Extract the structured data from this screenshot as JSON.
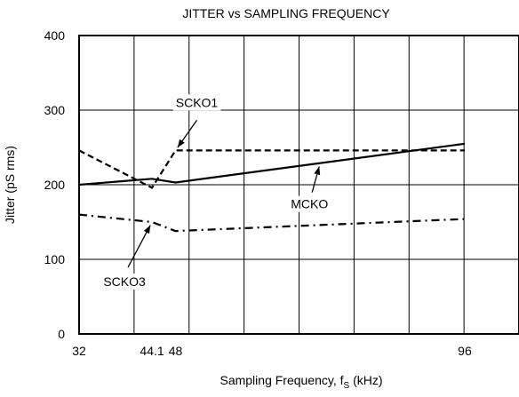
{
  "chart_data": {
    "type": "line",
    "title": "JITTER vs SAMPLING FREQUENCY",
    "xlabel_main": "Sampling Frequency, f",
    "xlabel_sub": "S",
    "xlabel_unit": " (kHz)",
    "ylabel": "Jitter (pS rms)",
    "xlim": [
      32,
      105
    ],
    "ylim": [
      0,
      400
    ],
    "x_ticks": [
      {
        "value": 32,
        "label": "32"
      },
      {
        "value": 44.1,
        "label": "44.1"
      },
      {
        "value": 48,
        "label": "48"
      },
      {
        "value": 96,
        "label": "96"
      }
    ],
    "y_ticks": [
      {
        "value": 0,
        "label": "0"
      },
      {
        "value": 100,
        "label": "100"
      },
      {
        "value": 200,
        "label": "200"
      },
      {
        "value": 300,
        "label": "300"
      },
      {
        "value": 400,
        "label": "400"
      }
    ],
    "grid": true,
    "series": [
      {
        "name": "MCKO",
        "style": "solid",
        "x": [
          32,
          44.1,
          48,
          96
        ],
        "y": [
          200,
          208,
          203,
          255
        ]
      },
      {
        "name": "SCKO1",
        "style": "dashed",
        "x": [
          32,
          44.1,
          48,
          96
        ],
        "y": [
          246,
          196,
          246,
          246
        ]
      },
      {
        "name": "SCKO3",
        "style": "dashdot",
        "x": [
          32,
          44.1,
          48,
          96
        ],
        "y": [
          160,
          150,
          138,
          154
        ]
      }
    ],
    "annotations": [
      {
        "text": "SCKO1",
        "target_x": 48,
        "target_y": 246
      },
      {
        "text": "MCKO",
        "target_x": 72,
        "target_y": 229
      },
      {
        "text": "SCKO3",
        "target_x": 44.1,
        "target_y": 150
      }
    ]
  }
}
